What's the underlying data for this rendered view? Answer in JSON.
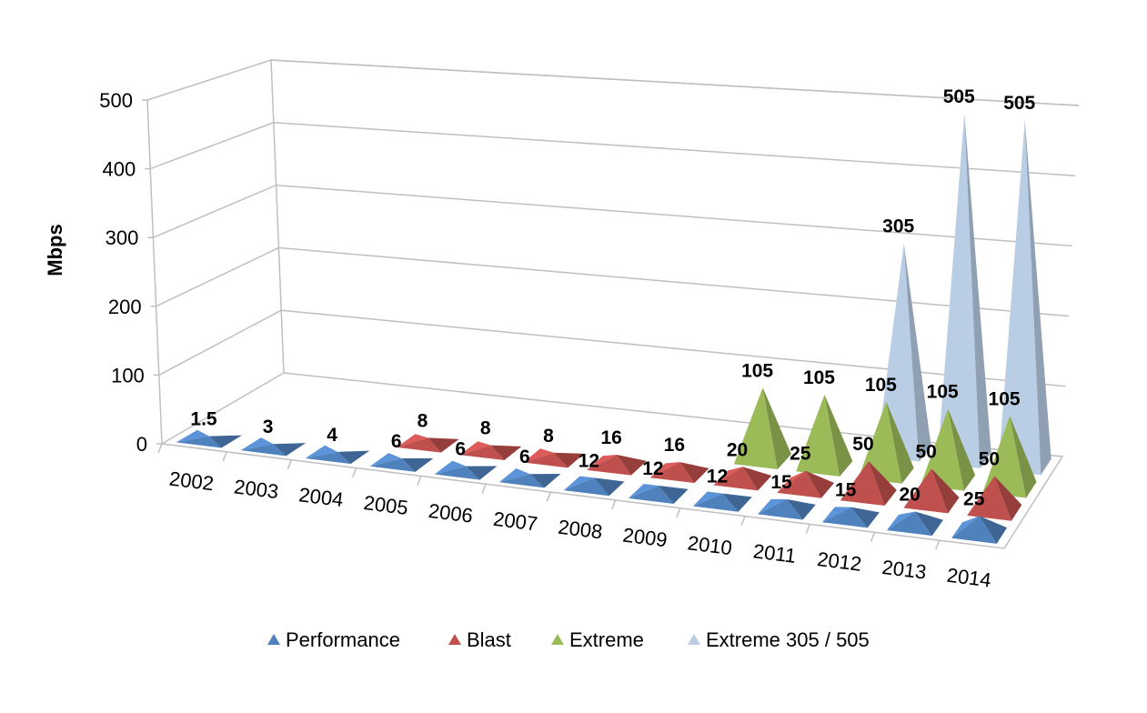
{
  "chart_data": {
    "type": "bar",
    "subtype": "3d-pyramid",
    "title": "",
    "xlabel": "",
    "ylabel": "Mbps",
    "ylim": [
      0,
      500
    ],
    "yticks": [
      "0",
      "100",
      "200",
      "300",
      "400",
      "500"
    ],
    "grid": true,
    "legend_position": "bottom",
    "categories": [
      "2002",
      "2003",
      "2004",
      "2005",
      "2006",
      "2007",
      "2008",
      "2009",
      "2010",
      "2011",
      "2012",
      "2013",
      "2014"
    ],
    "series": [
      {
        "name": "Performance",
        "color": "#4F81BD",
        "values": [
          1.5,
          3,
          4,
          6,
          6,
          6,
          12,
          12,
          12,
          15,
          15,
          20,
          25
        ],
        "labels": [
          "1.5",
          "3",
          "4",
          "6",
          "6",
          "6",
          "12",
          "12",
          "12",
          "15",
          "15",
          "20",
          "25"
        ]
      },
      {
        "name": "Blast",
        "color": "#C0504D",
        "values": [
          null,
          null,
          null,
          8,
          8,
          8,
          16,
          16,
          20,
          25,
          50,
          50,
          50
        ],
        "labels": [
          "",
          "",
          "",
          "8",
          "8",
          "8",
          "16",
          "16",
          "20",
          "25",
          "50",
          "50",
          "50"
        ]
      },
      {
        "name": "Extreme",
        "color": "#9BBB59",
        "values": [
          null,
          null,
          null,
          null,
          null,
          null,
          null,
          null,
          105,
          105,
          105,
          105,
          105
        ],
        "labels": [
          "",
          "",
          "",
          "",
          "",
          "",
          "",
          "",
          "105",
          "105",
          "105",
          "105",
          "105"
        ]
      },
      {
        "name": "Extreme 305 / 505",
        "color": "#B9CDE5",
        "values": [
          null,
          null,
          null,
          null,
          null,
          null,
          null,
          null,
          null,
          null,
          305,
          505,
          505
        ],
        "labels": [
          "",
          "",
          "",
          "",
          "",
          "",
          "",
          "",
          "",
          "",
          "305",
          "505",
          "505"
        ]
      }
    ]
  }
}
